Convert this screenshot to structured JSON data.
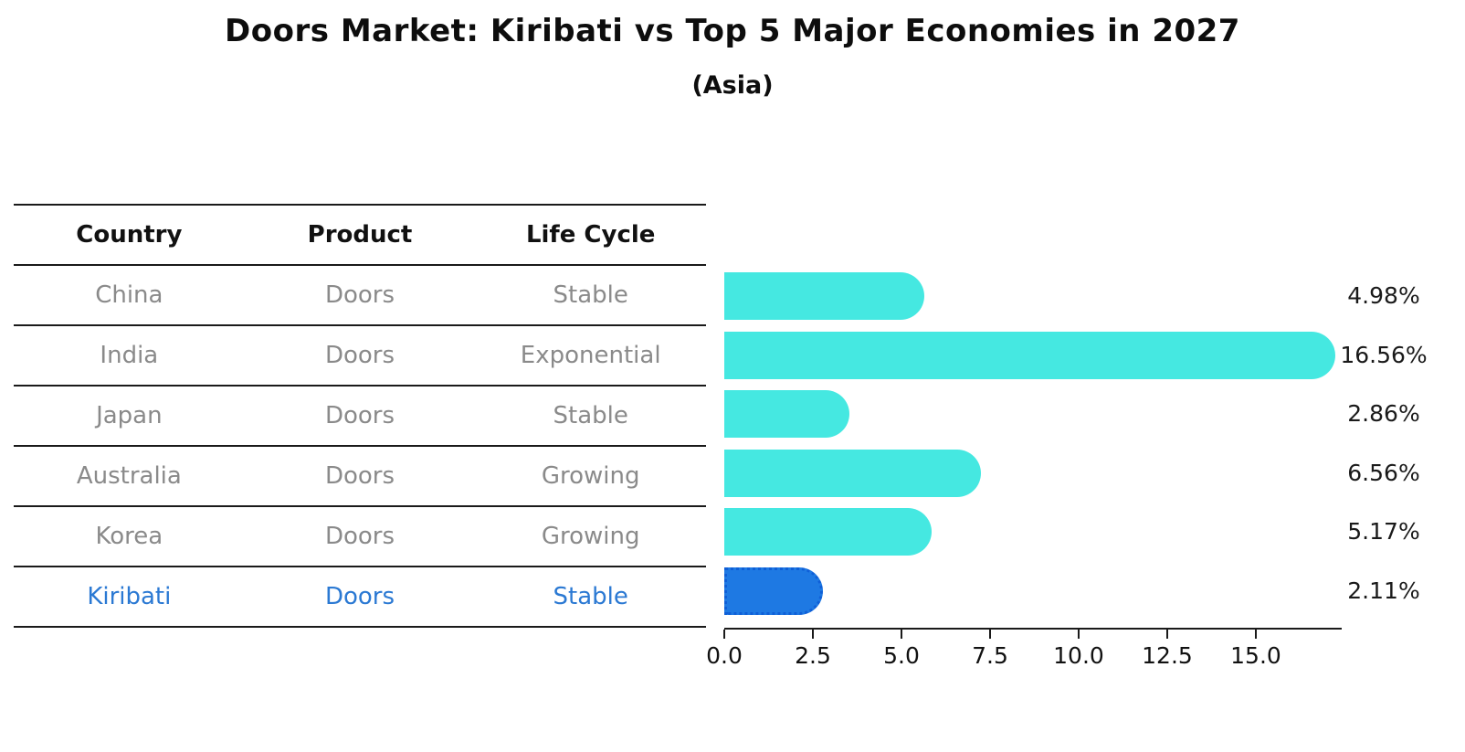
{
  "page": {
    "title": "Doors Market: Kiribati vs Top 5 Major Economies in 2027",
    "subtitle": "(Asia)"
  },
  "table": {
    "headers": [
      "Country",
      "Product",
      "Life Cycle"
    ],
    "rows": [
      {
        "country": "China",
        "product": "Doors",
        "life_cycle": "Stable",
        "highlight": false
      },
      {
        "country": "India",
        "product": "Doors",
        "life_cycle": "Exponential",
        "highlight": false
      },
      {
        "country": "Japan",
        "product": "Doors",
        "life_cycle": "Stable",
        "highlight": false
      },
      {
        "country": "Australia",
        "product": "Doors",
        "life_cycle": "Growing",
        "highlight": false
      },
      {
        "country": "Korea",
        "product": "Doors",
        "life_cycle": "Growing",
        "highlight": false
      },
      {
        "country": "Kiribati",
        "product": "Doors",
        "life_cycle": "Stable",
        "highlight": true
      }
    ]
  },
  "chart_data": {
    "type": "bar",
    "orientation": "horizontal",
    "title": "Doors Market: Kiribati vs Top 5 Major Economies in 2027",
    "subtitle": "(Asia)",
    "categories": [
      "China",
      "India",
      "Japan",
      "Australia",
      "Korea",
      "Kiribati"
    ],
    "values": [
      4.98,
      16.56,
      2.86,
      6.56,
      5.17,
      2.11
    ],
    "value_labels": [
      "4.98%",
      "16.56%",
      "2.86%",
      "6.56%",
      "5.17%",
      "2.11%"
    ],
    "xlim": [
      0,
      17.4
    ],
    "x_tick_labels": [
      "0.0",
      "2.5",
      "5.0",
      "7.5",
      "10.0",
      "12.5",
      "15.0"
    ],
    "x_tick_values": [
      0,
      2.5,
      5,
      7.5,
      10,
      12.5,
      15
    ],
    "grid": false,
    "legend": false,
    "highlight_category": "Kiribati",
    "colors": {
      "bar": "#45e8e1",
      "highlight_bar": "#1e79e3",
      "highlight_text": "#2b79d3",
      "row_text": "#8a8a8a",
      "header_text": "#111111",
      "axis": "#1a1a1a"
    }
  }
}
